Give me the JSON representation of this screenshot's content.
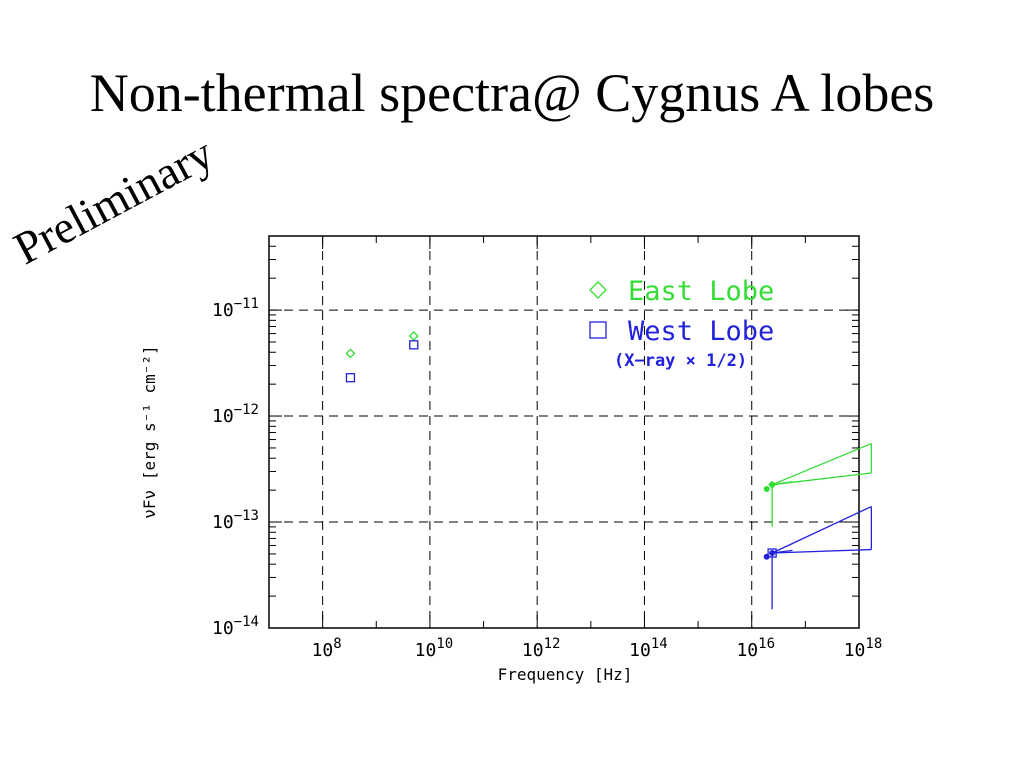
{
  "slide": {
    "title": "Non-thermal spectra@ Cygnus A lobes",
    "stamp": "Preliminary"
  },
  "chart_data": {
    "type": "scatter",
    "title": "",
    "xlabel": "Frequency [Hz]",
    "ylabel": "νFν [erg s⁻¹ cm⁻²]",
    "x_scale": "log",
    "y_scale": "log",
    "xlim": [
      10000000,
      1000000000000000000
    ],
    "ylim": [
      1e-14,
      5e-11
    ],
    "grid": true,
    "legend_position": "top-right",
    "x_ticks": [
      {
        "value": 100000000,
        "base": "10",
        "exp": "8"
      },
      {
        "value": 10000000000,
        "base": "10",
        "exp": "10"
      },
      {
        "value": 1000000000000,
        "base": "10",
        "exp": "12"
      },
      {
        "value": 100000000000000,
        "base": "10",
        "exp": "14"
      },
      {
        "value": 10000000000000000,
        "base": "10",
        "exp": "16"
      },
      {
        "value": 1000000000000000000,
        "base": "10",
        "exp": "18"
      }
    ],
    "y_ticks": [
      {
        "value": 1e-14,
        "base": "10",
        "exp": "−14"
      },
      {
        "value": 1e-13,
        "base": "10",
        "exp": "−13"
      },
      {
        "value": 1e-12,
        "base": "10",
        "exp": "−12"
      },
      {
        "value": 1e-11,
        "base": "10",
        "exp": "−11"
      }
    ],
    "annotation": "(X−ray × 1/2)",
    "series": [
      {
        "name": "East Lobe",
        "color": "#33dd33",
        "marker": "diamond",
        "points": [
          {
            "x": 330000000,
            "y": 3.9e-12
          },
          {
            "x": 5000000000,
            "y": 5.7e-12
          }
        ],
        "xray_points": [
          {
            "x": 19000000000000000,
            "y": 2.05e-13
          },
          {
            "x": 24000000000000000,
            "y": 2.25e-13
          }
        ],
        "xray_bowtie": {
          "x_min": 24000000000000000,
          "x_max": 1700000000000000000,
          "y_low_min": 9e-14,
          "y_high_max": 5.5e-13,
          "y_low_at_max": 2.9e-13,
          "y_high_at_min": 2.4e-13
        }
      },
      {
        "name": "West Lobe",
        "color": "#2222dd",
        "marker": "square",
        "points": [
          {
            "x": 330000000,
            "y": 2.3e-12
          },
          {
            "x": 5000000000,
            "y": 4.7e-12
          }
        ],
        "xray_points": [
          {
            "x": 19000000000000000,
            "y": 4.7e-14
          },
          {
            "x": 24000000000000000,
            "y": 5.1e-14
          }
        ],
        "xray_bowtie": {
          "x_min": 24000000000000000,
          "x_max": 1700000000000000000,
          "y_low_min": 1.5e-14,
          "y_high_max": 1.4e-13,
          "y_low_at_max": 5.5e-14,
          "y_high_at_min": 5.4e-14
        }
      }
    ]
  }
}
